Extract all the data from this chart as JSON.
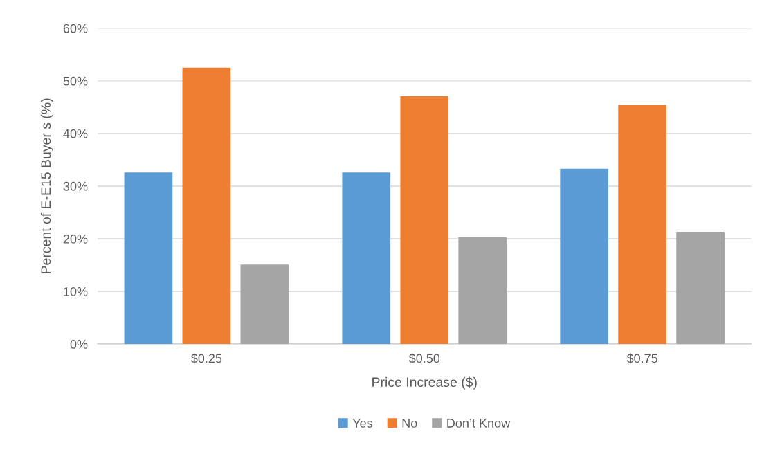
{
  "chart_data": {
    "type": "bar",
    "xlabel": "Price Increase ($)",
    "ylabel": "Percent of E-E15 Buyer s (%)",
    "categories": [
      "$0.25",
      "$0.50",
      "$0.75"
    ],
    "series": [
      {
        "name": "Yes",
        "color": "#5b9bd5",
        "values": [
          32.6,
          32.6,
          33.3
        ]
      },
      {
        "name": "No",
        "color": "#ed7d31",
        "values": [
          52.5,
          47.1,
          45.4
        ]
      },
      {
        "name": "Don’t Know",
        "color": "#a5a5a5",
        "values": [
          15.1,
          20.3,
          21.3
        ]
      }
    ],
    "ylim": [
      0,
      60
    ],
    "yticks": [
      {
        "value": 0,
        "label": "0%"
      },
      {
        "value": 10,
        "label": "10%"
      },
      {
        "value": 20,
        "label": "20%"
      },
      {
        "value": 30,
        "label": "30%"
      },
      {
        "value": 40,
        "label": "40%"
      },
      {
        "value": 50,
        "label": "50%"
      },
      {
        "value": 60,
        "label": "60%"
      }
    ],
    "grid": "y",
    "legend": "bottom"
  }
}
